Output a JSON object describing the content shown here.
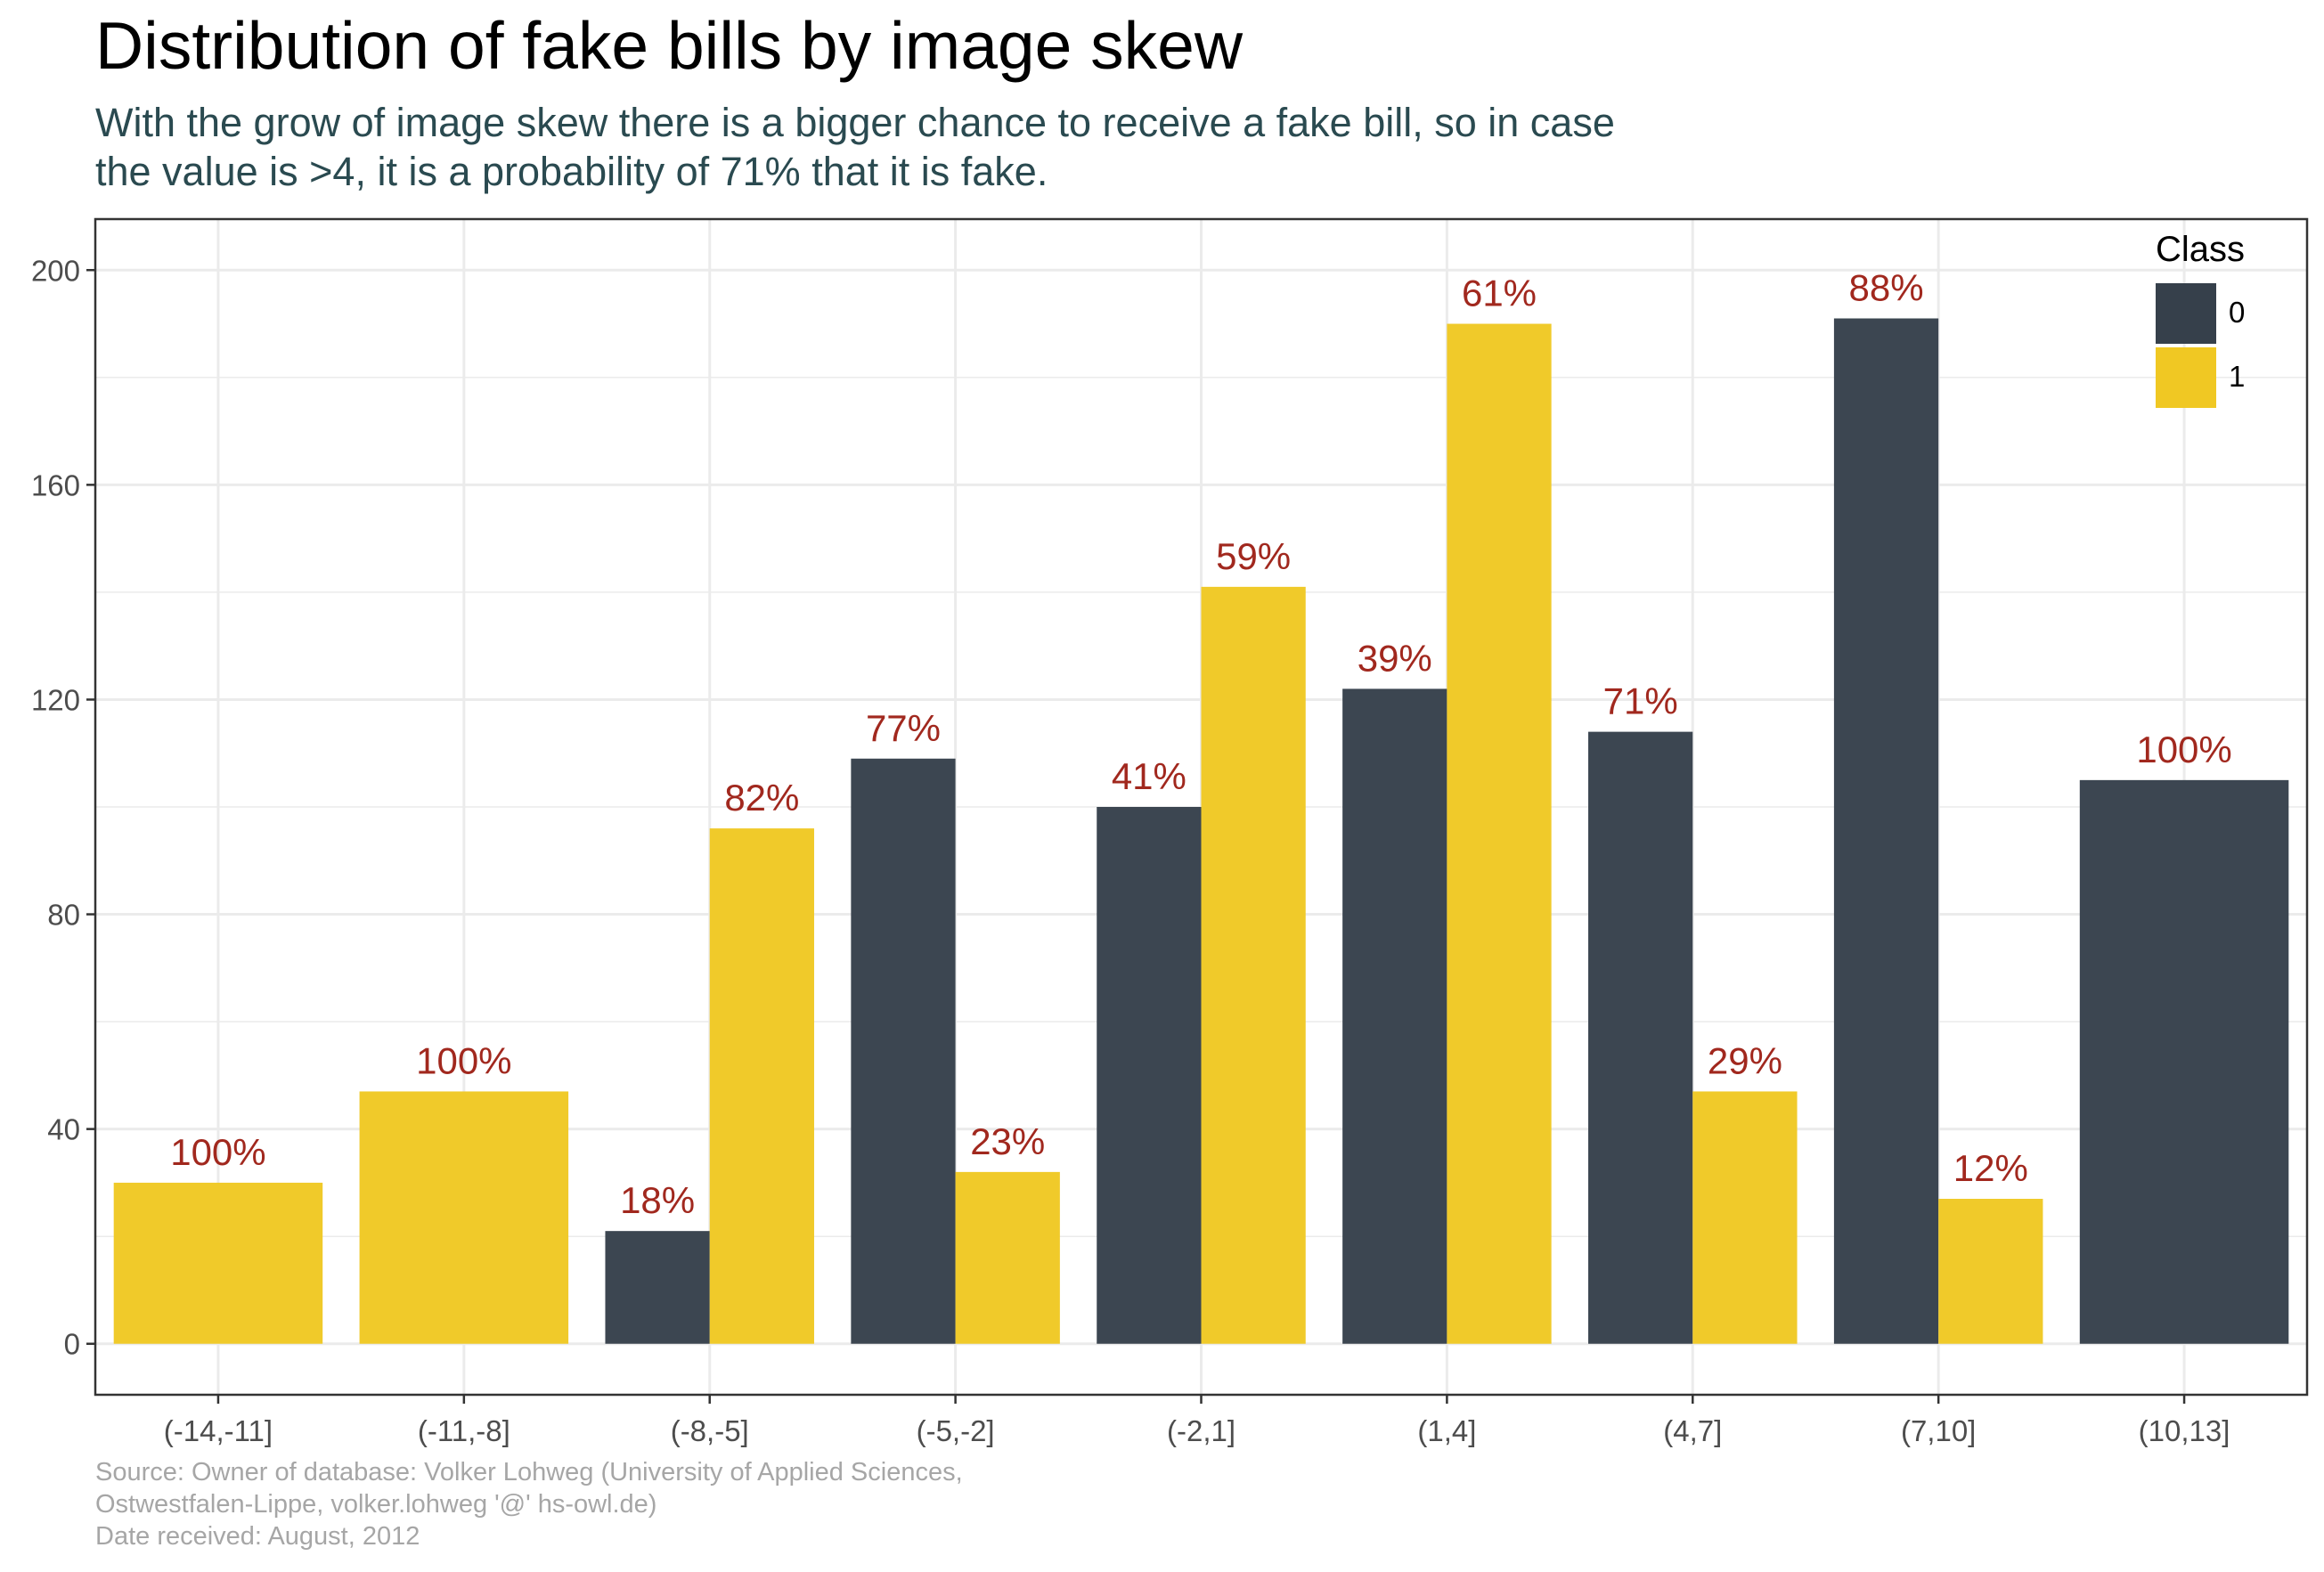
{
  "title": "Distribution of fake bills by image skew",
  "subtitle": {
    "line1": "With the grow of image skew there is a bigger chance to receive a fake bill, so in case",
    "line2": "the value is >4, it is a probability of 71% that it is fake."
  },
  "caption": {
    "line1": "Source: Owner of database: Volker Lohweg (University of Applied Sciences,",
    "line2": "Ostwestfalen-Lippe, volker.lohweg '@' hs-owl.de)",
    "line3": "Date received: August, 2012"
  },
  "legend": {
    "title": "Class",
    "items": [
      {
        "label": "0",
        "color": "#36404b"
      },
      {
        "label": "1",
        "color": "#f0c823"
      }
    ]
  },
  "colors": {
    "class0": "#36404b",
    "class1": "#f0c823",
    "data_label": "#a1281e",
    "grid": "#ebebeb",
    "axis_text": "#4d4d4d"
  },
  "chart_data": {
    "type": "bar",
    "categories": [
      "(-14,-11]",
      "(-11,-8]",
      "(-8,-5]",
      "(-5,-2]",
      "(-2,1]",
      "(1,4]",
      "(4,7]",
      "(7,10]",
      "(10,13]"
    ],
    "series": [
      {
        "name": "0",
        "values": [
          null,
          null,
          21,
          109,
          100,
          122,
          114,
          191,
          105
        ],
        "labels": [
          null,
          null,
          "18%",
          "77%",
          "41%",
          "39%",
          "71%",
          "88%",
          "100%"
        ]
      },
      {
        "name": "1",
        "values": [
          30,
          47,
          96,
          32,
          141,
          190,
          47,
          27,
          null
        ],
        "labels": [
          "100%",
          "100%",
          "82%",
          "23%",
          "59%",
          "61%",
          "29%",
          "12%",
          null
        ]
      }
    ],
    "ylim": [
      -9.5,
      209.5
    ],
    "yticks": [
      0,
      40,
      80,
      120,
      160,
      200
    ],
    "xlabel": "",
    "ylabel": "",
    "legend_position": "top-right",
    "grid": true
  }
}
